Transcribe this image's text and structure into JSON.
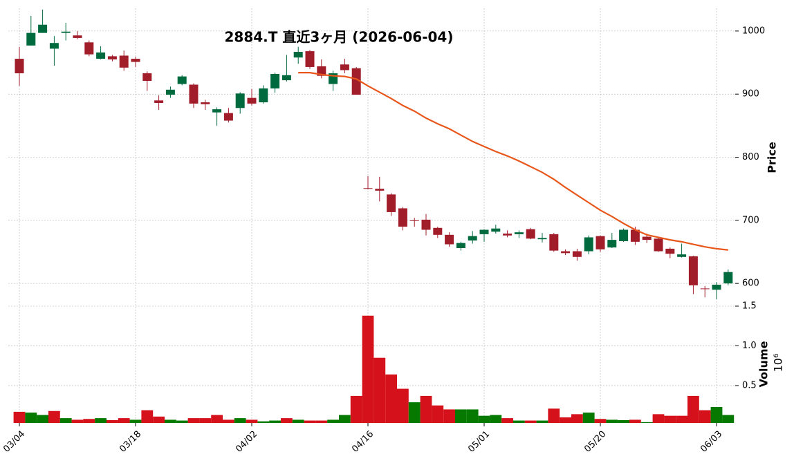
{
  "chart_data": {
    "type": "candlestick",
    "title": "2884.T  直近3ヶ月 (2026-06-04)",
    "ylabel": "Price",
    "volume_label": "Volume",
    "volume_exponent_label": "10⁶",
    "categories": [
      "03/04",
      null,
      null,
      null,
      null,
      null,
      null,
      null,
      null,
      null,
      "03/18",
      null,
      null,
      null,
      null,
      null,
      null,
      null,
      null,
      null,
      "04/02",
      null,
      null,
      null,
      null,
      null,
      null,
      null,
      null,
      null,
      "04/16",
      null,
      null,
      null,
      null,
      null,
      null,
      null,
      null,
      null,
      "05/01",
      null,
      null,
      null,
      null,
      null,
      null,
      null,
      null,
      null,
      "05/20",
      null,
      null,
      null,
      null,
      null,
      null,
      null,
      null,
      null,
      "06/03",
      null
    ],
    "open": [
      956,
      977,
      997,
      972,
      997,
      993,
      982,
      956,
      960,
      961,
      956,
      933,
      890,
      899,
      916,
      915,
      887,
      871,
      870,
      878,
      894,
      887,
      909,
      922,
      958,
      968,
      944,
      916,
      947,
      941,
      751,
      750,
      741,
      719,
      700,
      701,
      688,
      677,
      656,
      668,
      678,
      682,
      679,
      678,
      686,
      670,
      678,
      651,
      651,
      651,
      675,
      657,
      667,
      685,
      674,
      671,
      655,
      642,
      643,
      592,
      590,
      600
    ],
    "high": [
      975,
      1024,
      1034,
      992,
      1013,
      1000,
      985,
      976,
      962,
      969,
      959,
      936,
      898,
      912,
      930,
      917,
      891,
      879,
      878,
      903,
      908,
      914,
      934,
      962,
      975,
      970,
      955,
      937,
      956,
      943,
      770,
      769,
      743,
      721,
      704,
      710,
      690,
      681,
      666,
      683,
      686,
      693,
      684,
      684,
      688,
      680,
      680,
      654,
      655,
      676,
      676,
      680,
      687,
      690,
      679,
      674,
      657,
      663,
      644,
      596,
      602,
      622
    ],
    "low": [
      913,
      977,
      997,
      945,
      985,
      987,
      960,
      955,
      952,
      937,
      943,
      905,
      875,
      894,
      914,
      878,
      875,
      850,
      855,
      869,
      882,
      885,
      902,
      920,
      948,
      940,
      925,
      905,
      933,
      899,
      749,
      730,
      707,
      684,
      690,
      676,
      672,
      658,
      652,
      663,
      666,
      679,
      673,
      672,
      670,
      665,
      650,
      645,
      636,
      646,
      650,
      656,
      666,
      661,
      664,
      650,
      640,
      641,
      583,
      578,
      575,
      597
    ],
    "close": [
      933,
      997,
      1010,
      981,
      999,
      989,
      963,
      966,
      955,
      942,
      951,
      921,
      886,
      907,
      928,
      885,
      884,
      876,
      858,
      901,
      885,
      909,
      932,
      930,
      967,
      943,
      929,
      933,
      938,
      899,
      750,
      747,
      713,
      690,
      699,
      685,
      677,
      662,
      664,
      675,
      685,
      687,
      676,
      681,
      671,
      672,
      652,
      648,
      642,
      673,
      654,
      669,
      685,
      666,
      669,
      651,
      647,
      646,
      597,
      591,
      598,
      618
    ],
    "volume": [
      0.17,
      0.16,
      0.13,
      0.18,
      0.09,
      0.07,
      0.08,
      0.09,
      0.065,
      0.09,
      0.07,
      0.19,
      0.11,
      0.07,
      0.06,
      0.09,
      0.09,
      0.13,
      0.07,
      0.09,
      0.07,
      0.05,
      0.06,
      0.09,
      0.07,
      0.06,
      0.06,
      0.07,
      0.13,
      0.37,
      1.38,
      0.85,
      0.64,
      0.46,
      0.29,
      0.37,
      0.25,
      0.2,
      0.2,
      0.2,
      0.12,
      0.13,
      0.09,
      0.06,
      0.06,
      0.06,
      0.21,
      0.1,
      0.14,
      0.16,
      0.08,
      0.07,
      0.065,
      0.07,
      0.04,
      0.14,
      0.12,
      0.12,
      0.37,
      0.19,
      0.23,
      0.13
    ],
    "moving_average": {
      "color": "#e8561a",
      "values": [
        null,
        null,
        null,
        null,
        null,
        null,
        null,
        null,
        null,
        null,
        null,
        null,
        null,
        null,
        null,
        null,
        null,
        null,
        null,
        null,
        null,
        null,
        null,
        null,
        934,
        934,
        931,
        929,
        928,
        924,
        913,
        903,
        893,
        882,
        873,
        862,
        853,
        845,
        835,
        825,
        817,
        809,
        802,
        794,
        785,
        776,
        765,
        752,
        740,
        728,
        716,
        706,
        695,
        685,
        677,
        673,
        669,
        666,
        662,
        658,
        655,
        653
      ]
    },
    "up_color": "#006a3f",
    "down_color": "#a21d2a",
    "volume_up_color": "#067a00",
    "volume_down_color": "#d5111b",
    "ylim": [
      564,
      1036
    ],
    "yticks": [
      600,
      700,
      800,
      900,
      1000
    ],
    "volume_ylim": [
      0.03,
      1.5
    ],
    "volume_ticks": [
      0.5,
      {
        "value": 1,
        "label": "1.0"
      },
      1.5
    ],
    "grid": true
  }
}
